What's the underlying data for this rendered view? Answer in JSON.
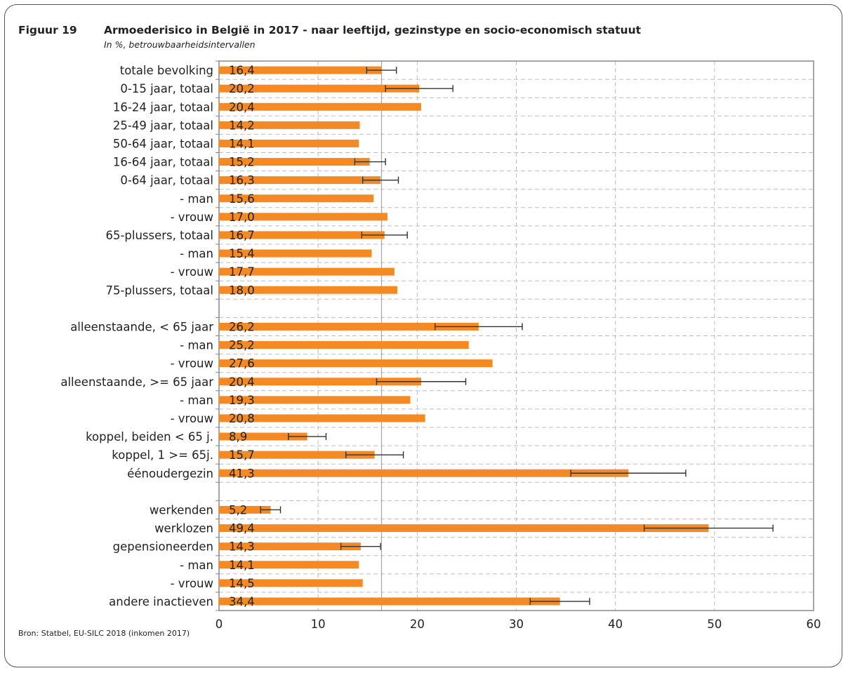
{
  "figure": {
    "label": "Figuur 19",
    "title": "Armoederisico in België in 2017 - naar leeftijd, gezinstype en socio-economisch statuut",
    "subtitle": "In %, betrouwbaarheidsintervallen",
    "source": "Bron: Statbel, EU-SILC 2018 (inkomen 2017)"
  },
  "colors": {
    "bar": "#F58A25",
    "error_bar": "#333333",
    "grid": "#bdbdbd",
    "reference_line": "#a6a6a6",
    "axis": "#888888"
  },
  "chart_data": {
    "type": "bar",
    "orientation": "horizontal",
    "title": "Armoederisico in België in 2017 - naar leeftijd, gezinstype en socio-economisch statuut",
    "subtitle": "In %, betrouwbaarheidsintervallen",
    "xlabel": "",
    "ylabel": "",
    "xlim": [
      0,
      60
    ],
    "xticks": [
      0,
      10,
      20,
      30,
      40,
      50,
      60
    ],
    "grid": "dashed vertical and horizontal",
    "legend": "none",
    "reference_line": 16.4,
    "categories": [
      "totale bevolking",
      "0-15 jaar, totaal",
      "16-24 jaar, totaal",
      "25-49 jaar, totaal",
      "50-64 jaar, totaal",
      "16-64 jaar, totaal",
      "0-64 jaar, totaal",
      "- man",
      "- vrouw",
      "65-plussers, totaal",
      "- man",
      "- vrouw",
      "75-plussers, totaal",
      "",
      "alleenstaande, < 65 jaar",
      "- man",
      "- vrouw",
      "alleenstaande, >= 65 jaar",
      "- man",
      "- vrouw",
      "koppel, beiden < 65 j.",
      "koppel, 1 >= 65j.",
      "éénoudergezin",
      "",
      "werkenden",
      "werklozen",
      "gepensioneerden",
      "- man",
      "- vrouw",
      "andere inactieven"
    ],
    "values": [
      16.4,
      20.2,
      20.4,
      14.2,
      14.1,
      15.2,
      16.3,
      15.6,
      17.0,
      16.7,
      15.4,
      17.7,
      18.0,
      null,
      26.2,
      25.2,
      27.6,
      20.4,
      19.3,
      20.8,
      8.9,
      15.7,
      41.3,
      null,
      5.2,
      49.4,
      14.3,
      14.1,
      14.5,
      34.4
    ],
    "value_labels": [
      "16,4",
      "20,2",
      "20,4",
      "14,2",
      "14,1",
      "15,2",
      "16,3",
      "15,6",
      "17,0",
      "16,7",
      "15,4",
      "17,7",
      "18,0",
      "",
      "26,2",
      "25,2",
      "27,6",
      "20,4",
      "19,3",
      "20,8",
      "8,9",
      "15,7",
      "41,3",
      "",
      "5,2",
      "49,4",
      "14,3",
      "14,1",
      "14,5",
      "34,4"
    ],
    "confidence_intervals": [
      [
        14.9,
        17.9
      ],
      [
        16.8,
        23.6
      ],
      null,
      null,
      null,
      [
        13.7,
        16.8
      ],
      [
        14.5,
        18.1
      ],
      null,
      null,
      [
        14.4,
        19.0
      ],
      null,
      null,
      null,
      null,
      [
        21.8,
        30.6
      ],
      null,
      null,
      [
        15.9,
        24.9
      ],
      null,
      null,
      [
        7.0,
        10.8
      ],
      [
        12.8,
        18.6
      ],
      [
        35.5,
        47.1
      ],
      null,
      [
        4.2,
        6.2
      ],
      [
        42.9,
        55.9
      ],
      [
        12.3,
        16.3
      ],
      null,
      null,
      [
        31.4,
        37.4
      ]
    ]
  }
}
